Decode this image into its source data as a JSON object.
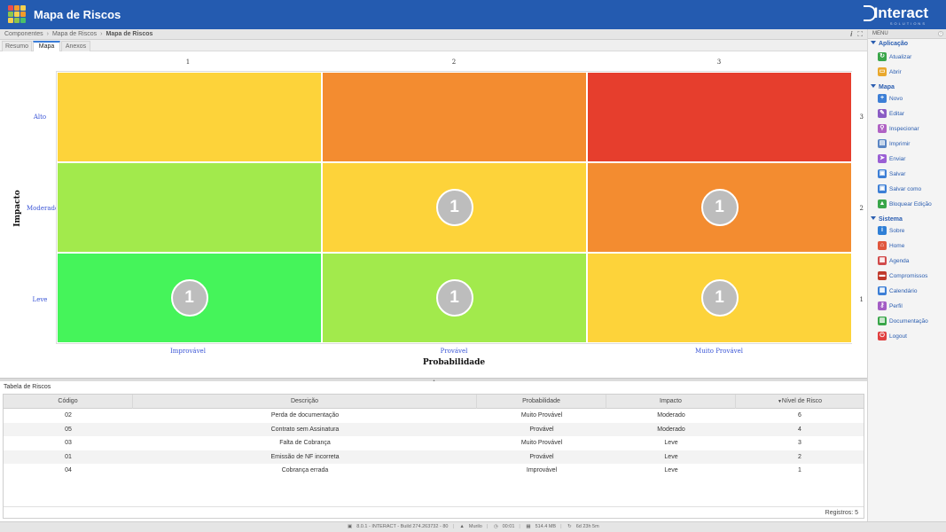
{
  "header": {
    "title": "Mapa de Riscos",
    "logo_text": "Interact",
    "logo_sub": "SOLUTIONS",
    "grid_colors": [
      "#e94e4e",
      "#f39a2b",
      "#f6d04d",
      "#8fc54a",
      "#f6d04d",
      "#f39a2b",
      "#f6d04d",
      "#8fc54a",
      "#4ac06a"
    ]
  },
  "breadcrumb": {
    "items": [
      "Componentes",
      "Mapa de Riscos",
      "Mapa de Riscos"
    ],
    "info_icon": "info-icon",
    "expand_icon": "expand-icon"
  },
  "tabs": [
    {
      "label": "Resumo"
    },
    {
      "label": "Mapa"
    },
    {
      "label": "Anexos"
    }
  ],
  "map": {
    "x_axis_title": "Probabilidade",
    "y_axis_title": "Impacto",
    "col_numbers": [
      "1",
      "2",
      "3"
    ],
    "row_numbers": [
      "3",
      "2",
      "1"
    ],
    "col_labels": [
      "Improvável",
      "Provável",
      "Muito Provável"
    ],
    "row_labels": [
      "Alto",
      "Moderado",
      "Leve"
    ],
    "colors": [
      [
        "#fdd33a",
        "#f38c30",
        "#e63e2d"
      ],
      [
        "#a2ea4c",
        "#fdd33a",
        "#f38c30"
      ],
      [
        "#45f45a",
        "#a2ea4c",
        "#fdd33a"
      ]
    ],
    "counts": [
      [
        "",
        "",
        ""
      ],
      [
        "",
        "1",
        "1"
      ],
      [
        "1",
        "1",
        "1"
      ]
    ]
  },
  "table": {
    "title": "Tabela de Riscos",
    "headers": [
      "Código",
      "Descrição",
      "Probabilidade",
      "Impacto",
      "Nível de Risco"
    ],
    "rows": [
      [
        "02",
        "Perda de documentação",
        "Muito Provável",
        "Moderado",
        "6"
      ],
      [
        "05",
        "Contrato sem Assinatura",
        "Provável",
        "Moderado",
        "4"
      ],
      [
        "03",
        "Falta de Cobrança",
        "Muito Provável",
        "Leve",
        "3"
      ],
      [
        "01",
        "Emissão de NF incorreta",
        "Provável",
        "Leve",
        "2"
      ],
      [
        "04",
        "Cobrança errada",
        "Improvável",
        "Leve",
        "1"
      ]
    ],
    "footer": "Registros: 5"
  },
  "status": {
    "items": [
      "8.0.1 - INTERACT - Build 274.263732 - 80",
      "Murilo",
      "00:01",
      "514.4 MB",
      "6d 23h 5m"
    ]
  },
  "menu": {
    "title": "MENU",
    "sections": [
      {
        "label": "Aplicação",
        "items": [
          {
            "label": "Atualizar",
            "icon": "refresh-icon",
            "color": "#3aa64a",
            "glyph": "↻"
          },
          {
            "label": "Abrir",
            "icon": "folder-icon",
            "color": "#e9a82d",
            "glyph": "▭"
          }
        ]
      },
      {
        "label": "Mapa",
        "items": [
          {
            "label": "Novo",
            "icon": "new-icon",
            "color": "#3d7fd6",
            "glyph": "+"
          },
          {
            "label": "Editar",
            "icon": "pencil-icon",
            "color": "#8a5cc4",
            "glyph": "✎"
          },
          {
            "label": "Inspecionar",
            "icon": "inspect-icon",
            "color": "#b062c4",
            "glyph": "⚲"
          },
          {
            "label": "Imprimir",
            "icon": "printer-icon",
            "color": "#5b86c4",
            "glyph": "▤"
          },
          {
            "label": "Enviar",
            "icon": "send-icon",
            "color": "#9a5fd4",
            "glyph": "➤"
          },
          {
            "label": "Salvar",
            "icon": "save-icon",
            "color": "#3d7fd6",
            "glyph": "▣"
          },
          {
            "label": "Salvar como",
            "icon": "save-as-icon",
            "color": "#3d7fd6",
            "glyph": "▣"
          },
          {
            "label": "Bloquear Edição",
            "icon": "lock-icon",
            "color": "#3aa64a",
            "glyph": "▲"
          }
        ]
      },
      {
        "label": "Sistema",
        "items": [
          {
            "label": "Sobre",
            "icon": "about-icon",
            "color": "#2f7fd6",
            "glyph": "i"
          },
          {
            "label": "Home",
            "icon": "home-icon",
            "color": "#e0573d",
            "glyph": "⌂"
          },
          {
            "label": "Agenda",
            "icon": "agenda-icon",
            "color": "#d14b4b",
            "glyph": "▦"
          },
          {
            "label": "Compromissos",
            "icon": "briefcase-icon",
            "color": "#c0392b",
            "glyph": "▬"
          },
          {
            "label": "Calendário",
            "icon": "calendar-icon",
            "color": "#3d7fd6",
            "glyph": "▦"
          },
          {
            "label": "Perfil",
            "icon": "key-icon",
            "color": "#a35dc4",
            "glyph": "⚷"
          },
          {
            "label": "Documentação",
            "icon": "docs-icon",
            "color": "#3aa64a",
            "glyph": "▥"
          },
          {
            "label": "Logout",
            "icon": "power-icon",
            "color": "#e04040",
            "glyph": "⏻"
          }
        ]
      }
    ]
  }
}
